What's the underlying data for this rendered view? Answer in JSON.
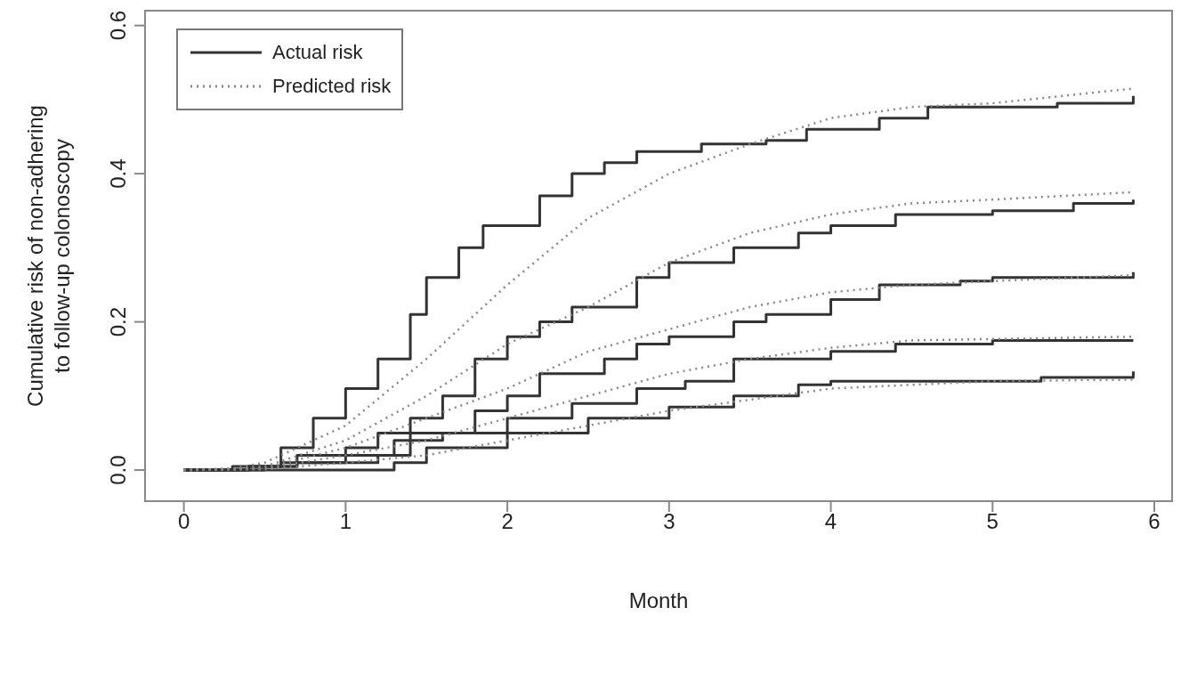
{
  "chart_data": {
    "type": "line",
    "xlabel": "Month",
    "ylabel": "Cumulative risk of non-adhering\nto follow-up colonoscopy",
    "xlim": [
      -0.24,
      6.11
    ],
    "ylim": [
      -0.042,
      0.62
    ],
    "xticks": [
      0,
      1,
      2,
      3,
      4,
      5,
      6
    ],
    "yticks": [
      {
        "value": 0,
        "label": "0.0"
      },
      {
        "value": 0.2,
        "label": "0.2"
      },
      {
        "value": 0.4,
        "label": "0.4"
      },
      {
        "value": 0.6,
        "label": "0.6"
      }
    ],
    "legend": "top left",
    "marker": "none",
    "series": [
      {
        "name": "Actual risk",
        "type": "step",
        "line_style": "solid",
        "color": "#333333",
        "x": [
          0,
          0.3,
          0.6,
          0.8,
          1.0,
          1.2,
          1.4,
          1.5,
          1.7,
          1.85,
          2.0,
          2.2,
          2.4,
          2.6,
          2.8,
          3.0,
          3.2,
          3.6,
          3.85,
          4.3,
          4.6,
          5.0,
          5.4,
          5.87
        ],
        "values": [
          0,
          0.005,
          0.03,
          0.07,
          0.11,
          0.15,
          0.21,
          0.26,
          0.3,
          0.33,
          0.33,
          0.37,
          0.4,
          0.415,
          0.43,
          0.43,
          0.44,
          0.445,
          0.46,
          0.475,
          0.49,
          0.49,
          0.495,
          0.505
        ]
      },
      {
        "type": "step",
        "line_style": "solid",
        "color": "#333333",
        "x": [
          0,
          0.4,
          0.7,
          1.0,
          1.2,
          1.4,
          1.6,
          1.8,
          2.0,
          2.2,
          2.4,
          2.8,
          3.0,
          3.4,
          3.8,
          4.0,
          4.4,
          5.0,
          5.5,
          5.87
        ],
        "values": [
          0,
          0.005,
          0.02,
          0.03,
          0.05,
          0.07,
          0.1,
          0.15,
          0.18,
          0.2,
          0.22,
          0.26,
          0.28,
          0.3,
          0.32,
          0.33,
          0.345,
          0.35,
          0.36,
          0.365
        ]
      },
      {
        "type": "step",
        "line_style": "solid",
        "color": "#333333",
        "x": [
          0,
          0.4,
          0.6,
          1.0,
          1.4,
          1.8,
          2.0,
          2.2,
          2.6,
          2.8,
          3.0,
          3.4,
          3.6,
          4.0,
          4.3,
          4.8,
          5.0,
          5.87
        ],
        "values": [
          0,
          0.005,
          0.01,
          0.02,
          0.05,
          0.08,
          0.1,
          0.13,
          0.15,
          0.17,
          0.18,
          0.2,
          0.21,
          0.23,
          0.25,
          0.255,
          0.26,
          0.267
        ]
      },
      {
        "type": "step",
        "line_style": "solid",
        "color": "#333333",
        "x": [
          0,
          0.5,
          0.7,
          1.2,
          1.3,
          1.6,
          2.0,
          2.4,
          2.8,
          3.1,
          3.4,
          3.8,
          4.0,
          4.4,
          5.0,
          5.87
        ],
        "values": [
          0,
          0.005,
          0.01,
          0.02,
          0.04,
          0.05,
          0.07,
          0.09,
          0.11,
          0.12,
          0.15,
          0.15,
          0.16,
          0.17,
          0.175,
          0.175
        ]
      },
      {
        "type": "step",
        "line_style": "solid",
        "color": "#333333",
        "x": [
          0,
          1.25,
          1.3,
          1.5,
          2.0,
          2.5,
          3.0,
          3.4,
          3.8,
          4.0,
          5.0,
          5.3,
          5.87
        ],
        "values": [
          0,
          0,
          0.01,
          0.03,
          0.05,
          0.07,
          0.085,
          0.1,
          0.115,
          0.12,
          0.12,
          0.125,
          0.133
        ]
      },
      {
        "name": "Predicted risk",
        "line_style": "dotted",
        "color": "#888888",
        "x": [
          0,
          0.3,
          0.5,
          1.0,
          1.5,
          2.0,
          2.5,
          3.0,
          3.5,
          4.0,
          4.5,
          5.0,
          5.87
        ],
        "values": [
          0,
          0.002,
          0.01,
          0.06,
          0.15,
          0.25,
          0.34,
          0.4,
          0.44,
          0.475,
          0.49,
          0.495,
          0.515
        ]
      },
      {
        "line_style": "dotted",
        "color": "#888888",
        "x": [
          0,
          0.3,
          0.5,
          1.0,
          1.5,
          2.0,
          2.5,
          3.0,
          3.5,
          4.0,
          4.5,
          5.0,
          5.87
        ],
        "values": [
          0,
          0.002,
          0.005,
          0.04,
          0.1,
          0.17,
          0.22,
          0.28,
          0.32,
          0.345,
          0.36,
          0.365,
          0.375
        ]
      },
      {
        "line_style": "dotted",
        "color": "#888888",
        "x": [
          0,
          0.3,
          0.5,
          1.0,
          1.5,
          2.0,
          2.5,
          3.0,
          3.5,
          4.0,
          4.5,
          5.0,
          5.87
        ],
        "values": [
          0,
          0.001,
          0.003,
          0.03,
          0.07,
          0.11,
          0.16,
          0.19,
          0.22,
          0.24,
          0.25,
          0.255,
          0.263
        ]
      },
      {
        "line_style": "dotted",
        "color": "#888888",
        "x": [
          0,
          0.5,
          1.0,
          1.5,
          2.0,
          2.5,
          3.0,
          3.5,
          4.0,
          4.5,
          5.87
        ],
        "values": [
          0,
          0.002,
          0.02,
          0.04,
          0.07,
          0.1,
          0.13,
          0.15,
          0.165,
          0.175,
          0.18
        ]
      },
      {
        "line_style": "dotted",
        "color": "#888888",
        "x": [
          0,
          0.5,
          1.0,
          1.5,
          2.0,
          2.5,
          3.0,
          3.5,
          4.0,
          4.5,
          5.0,
          5.87
        ],
        "values": [
          0,
          0.001,
          0.01,
          0.02,
          0.04,
          0.06,
          0.08,
          0.095,
          0.11,
          0.115,
          0.12,
          0.122
        ]
      }
    ]
  }
}
